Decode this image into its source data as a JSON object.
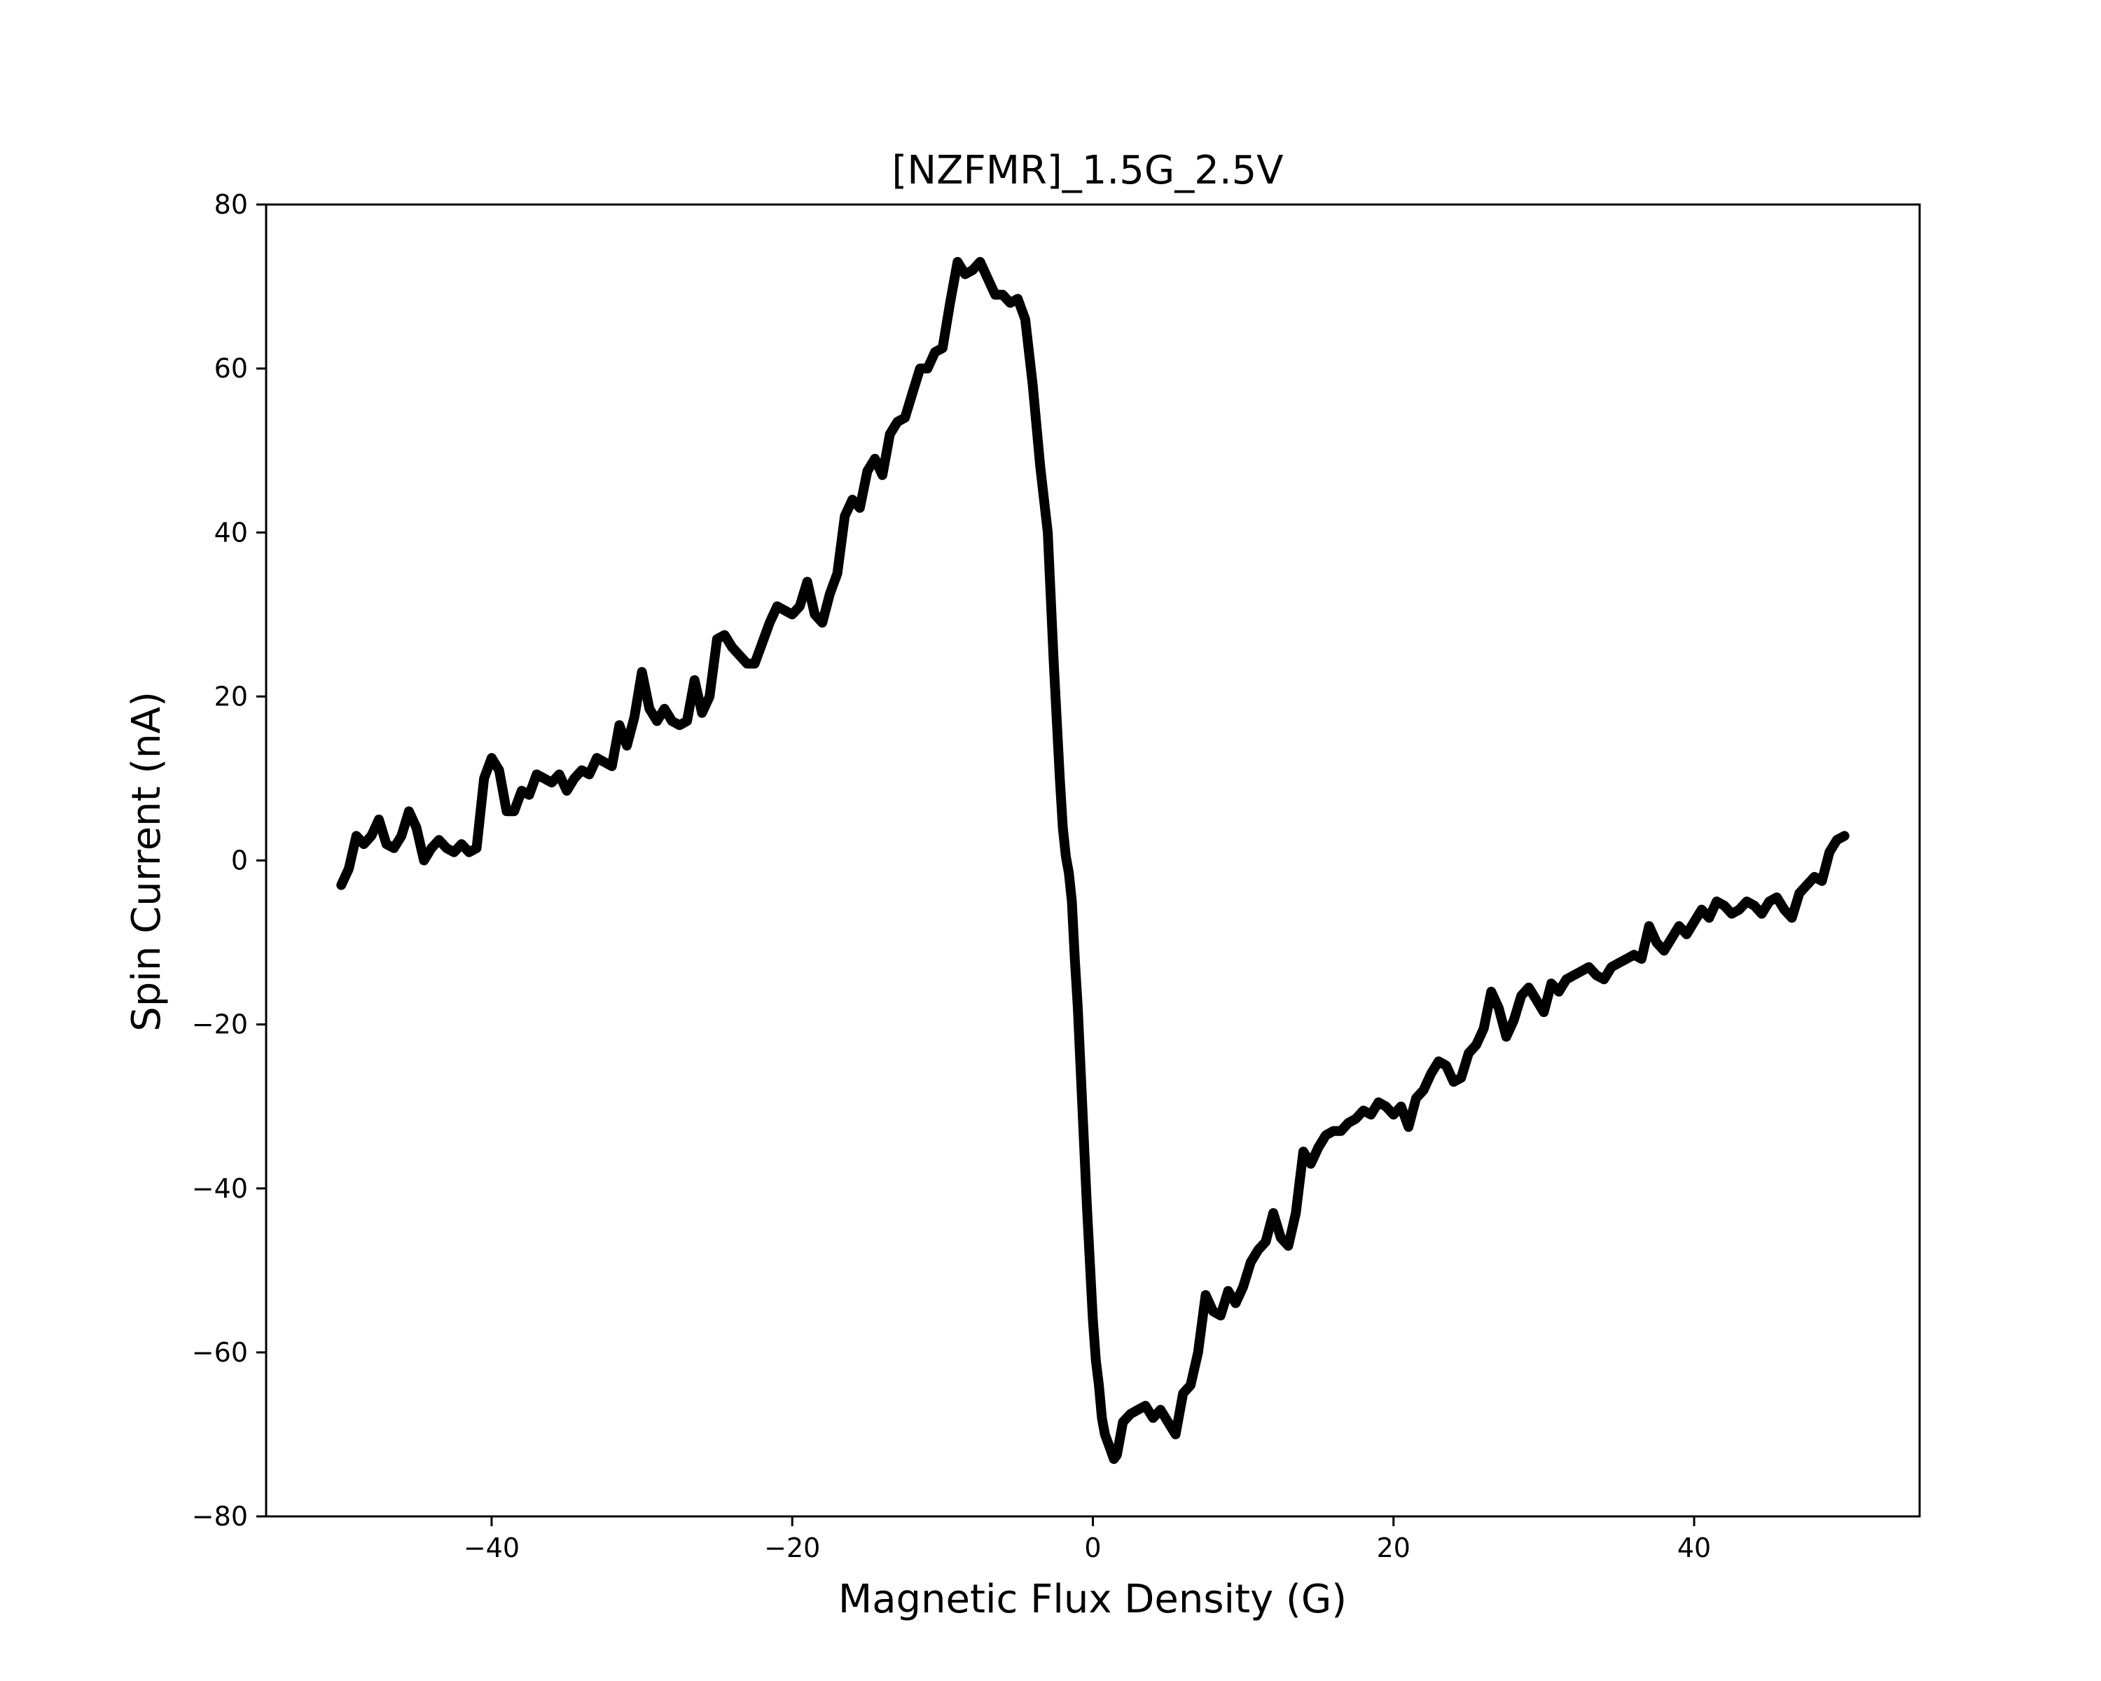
{
  "chart_data": {
    "type": "line",
    "title": "[NZFMR]_1.5G_2.5V",
    "xlabel": "Magnetic Flux Density (G)",
    "ylabel": "Spin Current (nA)",
    "xlim": [
      -55,
      55
    ],
    "ylim": [
      -80,
      80
    ],
    "grid": false,
    "legend": "none",
    "line_color": "#000000",
    "xticks": [
      -40,
      -20,
      0,
      20,
      40
    ],
    "xtick_labels": [
      "−40",
      "−20",
      "0",
      "20",
      "40"
    ],
    "yticks": [
      80,
      60,
      40,
      20,
      0,
      -20,
      -40,
      -60,
      -80
    ],
    "ytick_labels": [
      "80",
      "60",
      "40",
      "20",
      "0",
      "−20",
      "−40",
      "−60",
      "−80"
    ],
    "series": [
      {
        "x": [
          -50,
          -49.5,
          -49,
          -48.5,
          -48,
          -47.5,
          -47,
          -46.5,
          -46,
          -45.5,
          -45,
          -44.5,
          -44,
          -43.5,
          -43,
          -42.5,
          -42,
          -41.5,
          -41,
          -40.5,
          -40,
          -39.5,
          -39,
          -38.5,
          -38,
          -37.5,
          -37,
          -36.5,
          -36,
          -35.5,
          -35,
          -34.5,
          -34,
          -33.5,
          -33,
          -32.5,
          -32,
          -31.5,
          -31,
          -30.5,
          -30,
          -29.5,
          -29,
          -28.5,
          -28,
          -27.5,
          -27,
          -26.5,
          -26,
          -25.5,
          -25,
          -24.5,
          -24,
          -23.5,
          -23,
          -22.5,
          -22,
          -21.5,
          -21,
          -20.5,
          -20,
          -19.5,
          -19,
          -18.5,
          -18,
          -17.5,
          -17,
          -16.5,
          -16,
          -15.5,
          -15,
          -14.5,
          -14,
          -13.5,
          -13,
          -12.5,
          -12,
          -11.5,
          -11,
          -10.5,
          -10,
          -9.5,
          -9,
          -8.5,
          -8,
          -7.5,
          -7,
          -6.5,
          -6,
          -5.5,
          -5,
          -4.5,
          -4,
          -3.5,
          -3,
          -2.8,
          -2.6,
          -2.4,
          -2.2,
          -2,
          -1.8,
          -1.6,
          -1.4,
          -1.2,
          -1,
          -0.8,
          -0.6,
          -0.4,
          -0.2,
          0,
          0.2,
          0.4,
          0.6,
          0.8,
          1,
          1.2,
          1.4,
          1.6,
          1.8,
          2,
          2.5,
          3,
          3.5,
          4,
          4.5,
          5,
          5.5,
          6,
          6.5,
          7,
          7.5,
          8,
          8.5,
          9,
          9.5,
          10,
          10.5,
          11,
          11.5,
          12,
          12.5,
          13,
          13.5,
          14,
          14.5,
          15,
          15.5,
          16,
          16.5,
          17,
          17.5,
          18,
          18.5,
          19,
          19.5,
          20,
          20.5,
          21,
          21.5,
          22,
          22.5,
          23,
          23.5,
          24,
          24.5,
          25,
          25.5,
          26,
          26.5,
          27,
          27.5,
          28,
          28.5,
          29,
          29.5,
          30,
          30.5,
          31,
          31.5,
          32,
          32.5,
          33,
          33.5,
          34,
          34.5,
          35,
          35.5,
          36,
          36.5,
          37,
          37.5,
          38,
          38.5,
          39,
          39.5,
          40,
          40.5,
          41,
          41.5,
          42,
          42.5,
          43,
          43.5,
          44,
          44.5,
          45,
          45.5,
          46,
          46.5,
          47,
          47.5,
          48,
          48.5,
          49,
          49.5,
          50
        ],
        "y": [
          -3,
          -1,
          3,
          2,
          3,
          5,
          2,
          1.5,
          3,
          6,
          4,
          0,
          1.5,
          2.5,
          1.5,
          1,
          2,
          1,
          1.5,
          10,
          12.5,
          11,
          6,
          6,
          8.5,
          8,
          10.5,
          10,
          9.5,
          10.5,
          8.5,
          10,
          11,
          10.5,
          12.5,
          12,
          11.5,
          16.5,
          14,
          17.5,
          23,
          18.5,
          17,
          18.5,
          17,
          16.5,
          17,
          22,
          18,
          20,
          27,
          27.5,
          26,
          25,
          24,
          24,
          26.5,
          29,
          31,
          30.5,
          30,
          31,
          34,
          30,
          29,
          32.5,
          35,
          42,
          44,
          43,
          47.5,
          49,
          47,
          52,
          53.5,
          54,
          57,
          60,
          60,
          62,
          62.5,
          68,
          73,
          71.5,
          72,
          73,
          71,
          69,
          69,
          68,
          68.5,
          66,
          58,
          48,
          40,
          32,
          24,
          17,
          10,
          4,
          0.5,
          -1.5,
          -5,
          -12,
          -18,
          -26,
          -34,
          -42,
          -49,
          -56,
          -61,
          -64,
          -68,
          -70,
          -71,
          -72,
          -73,
          -72.5,
          -70.5,
          -68.5,
          -67.5,
          -67,
          -66.5,
          -68,
          -67,
          -68.5,
          -70,
          -65,
          -64,
          -60,
          -53,
          -55,
          -55.5,
          -52.5,
          -54,
          -52,
          -49,
          -47.5,
          -46.5,
          -43,
          -46,
          -47,
          -43,
          -35.5,
          -37,
          -35,
          -33.5,
          -33,
          -33,
          -32,
          -31.5,
          -30.5,
          -31,
          -29.5,
          -30,
          -31,
          -30,
          -32.5,
          -29,
          -28,
          -26,
          -24.5,
          -25,
          -27,
          -26.5,
          -23.5,
          -22.5,
          -20.5,
          -16,
          -18,
          -21.5,
          -19.5,
          -16.5,
          -15.5,
          -17,
          -18.5,
          -15,
          -16,
          -14.5,
          -14,
          -13.5,
          -13,
          -14,
          -14.5,
          -13,
          -12.5,
          -12,
          -11.5,
          -12,
          -8,
          -10,
          -11,
          -9.5,
          -8,
          -9,
          -7.5,
          -6,
          -7,
          -5,
          -5.5,
          -6.5,
          -6,
          -5,
          -5.5,
          -6.5,
          -5,
          -4.5,
          -6,
          -7,
          -4,
          -3,
          -2,
          -2.5,
          1,
          2.5,
          3
        ]
      }
    ]
  }
}
